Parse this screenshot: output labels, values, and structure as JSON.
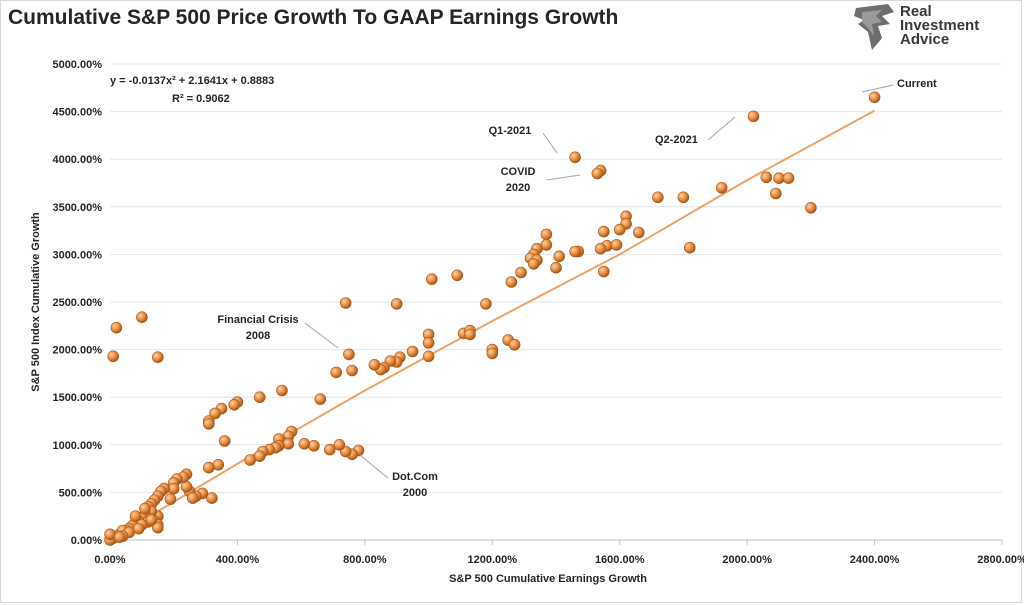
{
  "page": {
    "title": "Cumulative S&P 500 Price Growth To GAAP Earnings Growth",
    "logo_lines": [
      "Real",
      "Investment",
      "Advice"
    ]
  },
  "colors": {
    "point": "#e8883a",
    "point_edge": "#a85a1c",
    "trendline": "#f0a264",
    "grid": "#e6e6e6",
    "axis": "#bfbfbf"
  },
  "chart_data": {
    "type": "scatter",
    "title": "Cumulative S&P 500 Price Growth To GAAP Earnings Growth",
    "xlabel": "S&P 500 Cumulative Earnings Growth",
    "ylabel": "S&P 500 Index Cumulative Growth",
    "xlim": [
      0,
      2800
    ],
    "ylim": [
      0,
      5000
    ],
    "x_ticks": [
      0,
      400,
      800,
      1200,
      1600,
      2000,
      2400,
      2800
    ],
    "x_tick_labels": [
      "0.00%",
      "400.00%",
      "800.00%",
      "1200.00%",
      "1600.00%",
      "2000.00%",
      "2400.00%",
      "2800.00%"
    ],
    "y_ticks": [
      0,
      500,
      1000,
      1500,
      2000,
      2500,
      3000,
      3500,
      4000,
      4500,
      5000
    ],
    "y_tick_labels": [
      "0.00%",
      "500.00%",
      "1000.00%",
      "1500.00%",
      "2000.00%",
      "2500.00%",
      "3000.00%",
      "3500.00%",
      "4000.00%",
      "4500.00%",
      "5000.00%"
    ],
    "grid": "horizontal",
    "trendline": {
      "type": "polynomial",
      "equation": "y = -0.0137x² + 2.1641x + 0.8883",
      "r_squared": "R² = 0.9062",
      "x": [
        0,
        400,
        800,
        1200,
        1600,
        2000,
        2400
      ],
      "y": [
        0,
        800,
        1570,
        2300,
        3000,
        3780,
        4510
      ]
    },
    "annotations": [
      {
        "lines": [
          "Current"
        ],
        "x": 2400,
        "y": 4650
      },
      {
        "lines": [
          "Q2-2021"
        ],
        "x": 2020,
        "y": 4450
      },
      {
        "lines": [
          "Q1-2021"
        ],
        "x": 1460,
        "y": 4020
      },
      {
        "lines": [
          "COVID",
          "2020"
        ],
        "x": 1530,
        "y": 3850
      },
      {
        "lines": [
          "Financial Crisis",
          "2008"
        ],
        "x": 750,
        "y": 1950
      },
      {
        "lines": [
          "Dot.Com",
          "2000"
        ],
        "x": 780,
        "y": 940
      }
    ],
    "points": [
      [
        2400,
        4650
      ],
      [
        2020,
        4450
      ],
      [
        1460,
        4020
      ],
      [
        1540,
        3880
      ],
      [
        1530,
        3850
      ],
      [
        1920,
        3700
      ],
      [
        2060,
        3810
      ],
      [
        2100,
        3800
      ],
      [
        2130,
        3800
      ],
      [
        2090,
        3640
      ],
      [
        2200,
        3490
      ],
      [
        1720,
        3600
      ],
      [
        1800,
        3600
      ],
      [
        1820,
        3070
      ],
      [
        1620,
        3400
      ],
      [
        1620,
        3320
      ],
      [
        1600,
        3260
      ],
      [
        1660,
        3230
      ],
      [
        1550,
        3240
      ],
      [
        1560,
        3090
      ],
      [
        1590,
        3100
      ],
      [
        1540,
        3060
      ],
      [
        1550,
        2820
      ],
      [
        1470,
        3030
      ],
      [
        1460,
        3030
      ],
      [
        1410,
        2980
      ],
      [
        1400,
        2860
      ],
      [
        1370,
        3210
      ],
      [
        1370,
        3100
      ],
      [
        1340,
        3060
      ],
      [
        1330,
        3000
      ],
      [
        1320,
        2960
      ],
      [
        1340,
        2940
      ],
      [
        1330,
        2900
      ],
      [
        1290,
        2810
      ],
      [
        1260,
        2710
      ],
      [
        1180,
        2480
      ],
      [
        1250,
        2100
      ],
      [
        1270,
        2050
      ],
      [
        1200,
        2000
      ],
      [
        1200,
        1960
      ],
      [
        1110,
        2170
      ],
      [
        1130,
        2200
      ],
      [
        1130,
        2160
      ],
      [
        1090,
        2780
      ],
      [
        1010,
        2740
      ],
      [
        1000,
        2160
      ],
      [
        1000,
        2070
      ],
      [
        1000,
        1930
      ],
      [
        950,
        1980
      ],
      [
        910,
        1920
      ],
      [
        900,
        1870
      ],
      [
        880,
        1880
      ],
      [
        860,
        1810
      ],
      [
        850,
        1790
      ],
      [
        830,
        1840
      ],
      [
        760,
        1780
      ],
      [
        900,
        2480
      ],
      [
        740,
        2490
      ],
      [
        750,
        1950
      ],
      [
        710,
        1760
      ],
      [
        660,
        1480
      ],
      [
        540,
        1570
      ],
      [
        470,
        1500
      ],
      [
        780,
        940
      ],
      [
        760,
        900
      ],
      [
        740,
        930
      ],
      [
        720,
        1000
      ],
      [
        690,
        950
      ],
      [
        640,
        990
      ],
      [
        610,
        1010
      ],
      [
        570,
        1140
      ],
      [
        560,
        1090
      ],
      [
        540,
        1030
      ],
      [
        530,
        1060
      ],
      [
        560,
        1010
      ],
      [
        530,
        990
      ],
      [
        520,
        970
      ],
      [
        500,
        950
      ],
      [
        480,
        930
      ],
      [
        470,
        880
      ],
      [
        440,
        840
      ],
      [
        400,
        1450
      ],
      [
        390,
        1420
      ],
      [
        350,
        1380
      ],
      [
        330,
        1330
      ],
      [
        310,
        1250
      ],
      [
        310,
        1220
      ],
      [
        360,
        1040
      ],
      [
        340,
        790
      ],
      [
        310,
        760
      ],
      [
        320,
        440
      ],
      [
        290,
        490
      ],
      [
        270,
        460
      ],
      [
        250,
        510
      ],
      [
        260,
        440
      ],
      [
        240,
        560
      ],
      [
        240,
        690
      ],
      [
        230,
        660
      ],
      [
        210,
        640
      ],
      [
        200,
        600
      ],
      [
        200,
        540
      ],
      [
        190,
        430
      ],
      [
        170,
        540
      ],
      [
        160,
        510
      ],
      [
        150,
        460
      ],
      [
        140,
        420
      ],
      [
        130,
        380
      ],
      [
        120,
        350
      ],
      [
        150,
        250
      ],
      [
        140,
        200
      ],
      [
        150,
        160
      ],
      [
        130,
        300
      ],
      [
        110,
        270
      ],
      [
        100,
        230
      ],
      [
        90,
        200
      ],
      [
        80,
        180
      ],
      [
        70,
        150
      ],
      [
        60,
        120
      ],
      [
        50,
        100
      ],
      [
        40,
        80
      ],
      [
        30,
        60
      ],
      [
        20,
        40
      ],
      [
        10,
        20
      ],
      [
        0,
        0
      ],
      [
        0,
        60
      ],
      [
        40,
        100
      ],
      [
        80,
        250
      ],
      [
        110,
        330
      ],
      [
        100,
        2340
      ],
      [
        20,
        2230
      ],
      [
        10,
        1930
      ],
      [
        150,
        1920
      ],
      [
        150,
        130
      ],
      [
        120,
        190
      ],
      [
        130,
        210
      ],
      [
        100,
        160
      ],
      [
        90,
        120
      ],
      [
        60,
        80
      ],
      [
        40,
        40
      ],
      [
        30,
        30
      ]
    ]
  }
}
